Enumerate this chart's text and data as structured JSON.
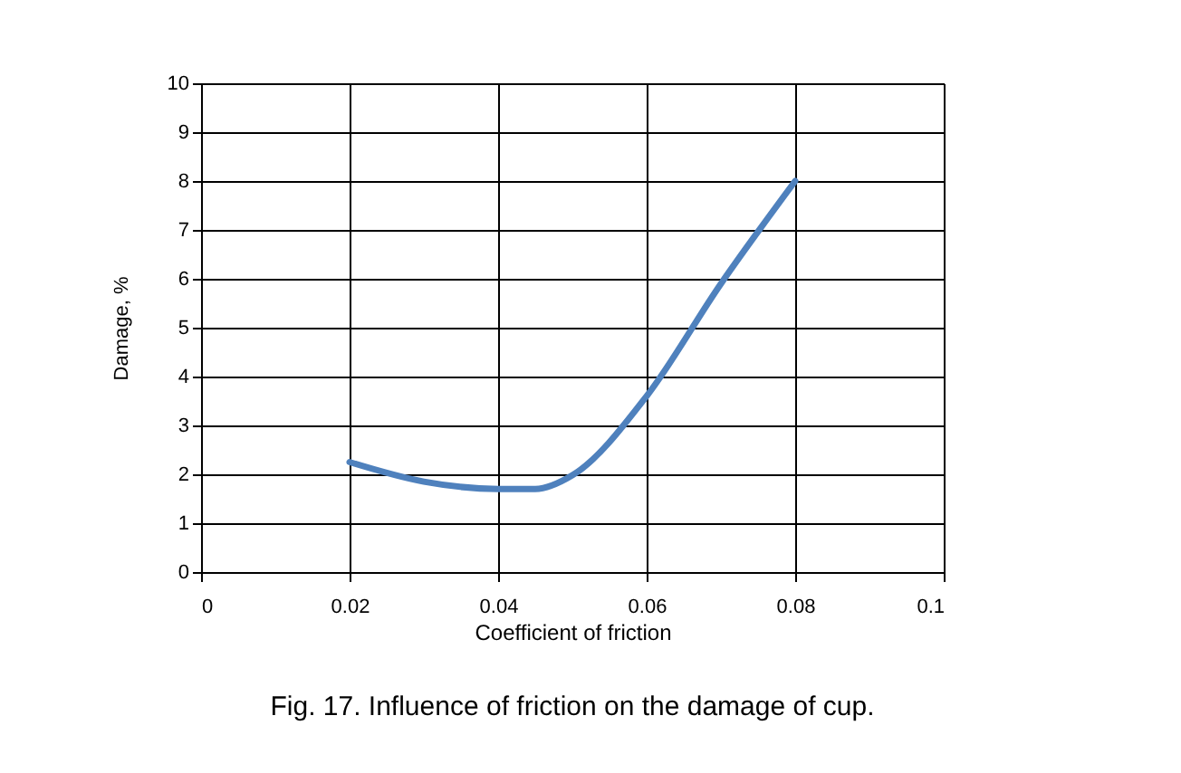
{
  "chart_data": {
    "type": "line",
    "title": "Fig. 17. Influence of friction on the damage of cup.",
    "xlabel": "Coefficient of friction",
    "ylabel": "Damage, %",
    "x": [
      0.02,
      0.03,
      0.04,
      0.045,
      0.05,
      0.06,
      0.07,
      0.08
    ],
    "series": [
      {
        "color": "#4f81bd",
        "values": [
          2.25,
          1.85,
          1.7,
          1.7,
          1.98,
          3.6,
          5.9,
          8.0
        ]
      }
    ],
    "xlim": [
      0,
      0.1
    ],
    "xticks": [
      0,
      0.02,
      0.04,
      0.06,
      0.08,
      0.1
    ],
    "ylim": [
      0,
      10
    ],
    "yticks": [
      0,
      1,
      2,
      3,
      4,
      5,
      6,
      7,
      8,
      9,
      10
    ],
    "grid": true,
    "marker": "none",
    "line_style": "solid"
  }
}
